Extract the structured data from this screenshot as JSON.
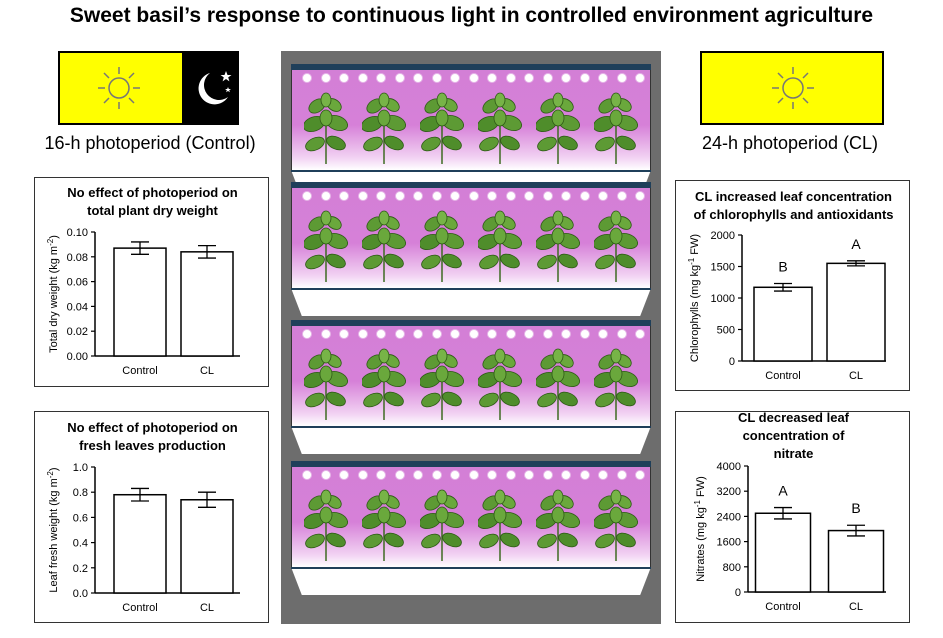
{
  "title": "Sweet basil’s response to continuous light in controlled environment agriculture",
  "control_label": "16-h photoperiod (Control)",
  "cl_label": "24-h photoperiod (CL)",
  "icons": {
    "sun": "sun-icon",
    "moon": "moon-and-stars-icon",
    "basil": "basil-plant-icon",
    "led": "led-light-icon"
  },
  "colors": {
    "day": "#ffff00",
    "night": "#000000",
    "grow_light": "#d680d8",
    "rack": "#6d6d6d"
  },
  "rack": {
    "shelves": 4,
    "plants_per_shelf": 6,
    "leds_per_shelf": 19
  },
  "chart_data": [
    {
      "id": "dry",
      "type": "bar",
      "title": "No effect of photoperiod on total plant dry weight",
      "ylabel": "Total dry weight (kg m",
      "ylabel_sup": "-2",
      "ylabel_end": ")",
      "categories": [
        "Control",
        "CL"
      ],
      "values": [
        0.087,
        0.084
      ],
      "errors": [
        0.005,
        0.005
      ],
      "ylim": [
        0,
        0.1
      ],
      "yticks": [
        "0.00",
        "0.02",
        "0.04",
        "0.06",
        "0.08",
        "0.10"
      ],
      "letters": [
        "",
        ""
      ]
    },
    {
      "id": "fresh",
      "type": "bar",
      "title": "No effect of photoperiod on fresh leaves production",
      "ylabel": "Leaf fresh weight (kg m",
      "ylabel_sup": "-2",
      "ylabel_end": ")",
      "categories": [
        "Control",
        "CL"
      ],
      "values": [
        0.78,
        0.74
      ],
      "errors": [
        0.05,
        0.06
      ],
      "ylim": [
        0,
        1.0
      ],
      "yticks": [
        "0.0",
        "0.2",
        "0.4",
        "0.6",
        "0.8",
        "1.0"
      ],
      "letters": [
        "",
        ""
      ]
    },
    {
      "id": "chl",
      "type": "bar",
      "title": "CL increased leaf concentration of chlorophylls and antioxidants",
      "ylabel": "Chlorophylls (mg kg",
      "ylabel_sup": "-1",
      "ylabel_end": " FW)",
      "categories": [
        "Control",
        "CL"
      ],
      "values": [
        1170,
        1550
      ],
      "errors": [
        60,
        40
      ],
      "ylim": [
        0,
        2000
      ],
      "yticks": [
        "0",
        "500",
        "1000",
        "1500",
        "2000"
      ],
      "letters": [
        "B",
        "A"
      ]
    },
    {
      "id": "nit",
      "type": "bar",
      "title": "CL decreased leaf concentration of nitrate",
      "ylabel": "Nitrates (mg kg",
      "ylabel_sup": "-1",
      "ylabel_end": " FW)",
      "categories": [
        "Control",
        "CL"
      ],
      "values": [
        2500,
        1950
      ],
      "errors": [
        180,
        170
      ],
      "ylim": [
        0,
        4000
      ],
      "yticks": [
        "0",
        "800",
        "1600",
        "2400",
        "3200",
        "4000"
      ],
      "letters": [
        "A",
        "B"
      ]
    }
  ]
}
